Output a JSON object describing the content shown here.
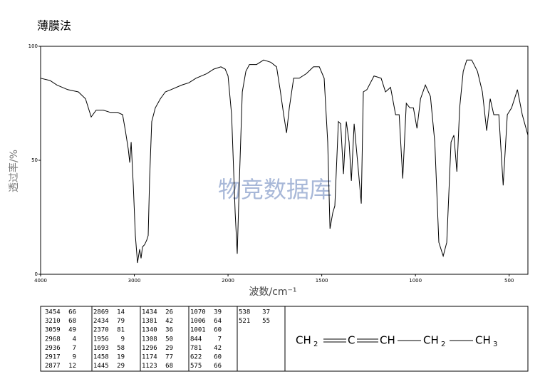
{
  "chart_data": {
    "type": "ir-spectrum",
    "title": "薄膜法",
    "xlabel": "波数/cm⁻¹",
    "ylabel": "透过率/%",
    "watermark": "物竞数据库",
    "xlim": [
      4000,
      400
    ],
    "x_break": 2000,
    "x_break_factor": 2,
    "xticks": [
      4000,
      3000,
      2000,
      1500,
      1000,
      500
    ],
    "ylim": [
      0,
      100
    ],
    "yticks": [
      0,
      50,
      100
    ],
    "color": "#000000",
    "x": [
      4000,
      3900,
      3825,
      3711,
      3597,
      3521,
      3460,
      3407,
      3331,
      3255,
      3179,
      3125,
      3095,
      3065,
      3049,
      3034,
      3011,
      2989,
      2966,
      2943,
      2928,
      2913,
      2890,
      2867,
      2852,
      2837,
      2814,
      2776,
      2722,
      2669,
      2608,
      2494,
      2418,
      2342,
      2228,
      2152,
      2076,
      2030,
      2000,
      1981,
      1962,
      1951,
      1939,
      1924,
      1905,
      1886,
      1848,
      1810,
      1772,
      1741,
      1722,
      1703,
      1688,
      1673,
      1650,
      1620,
      1582,
      1544,
      1513,
      1487,
      1468,
      1456,
      1441,
      1430,
      1411,
      1399,
      1384,
      1369,
      1354,
      1342,
      1327,
      1304,
      1289,
      1278,
      1259,
      1221,
      1183,
      1160,
      1133,
      1106,
      1087,
      1068,
      1049,
      1030,
      1011,
      992,
      973,
      947,
      920,
      897,
      875,
      852,
      833,
      810,
      795,
      779,
      764,
      745,
      726,
      700,
      669,
      643,
      620,
      601,
      582,
      555,
      532,
      510,
      487,
      456,
      430,
      400
    ],
    "values": [
      86,
      85,
      83,
      81,
      80,
      77,
      69,
      72,
      72,
      71,
      71,
      70,
      63,
      55,
      49,
      58,
      39,
      17,
      5,
      11,
      7,
      12,
      13,
      15,
      17,
      42,
      67,
      73,
      77,
      80,
      81,
      83,
      84,
      86,
      88,
      90,
      91,
      90,
      87,
      70,
      27,
      9,
      42,
      80,
      89,
      92,
      92,
      94,
      93,
      91,
      81,
      70,
      62,
      73,
      86,
      86,
      88,
      91,
      91,
      86,
      58,
      20,
      27,
      30,
      67,
      66,
      44,
      67,
      58,
      41,
      66,
      45,
      31,
      80,
      81,
      87,
      86,
      80,
      82,
      70,
      70,
      42,
      75,
      73,
      73,
      64,
      77,
      83,
      78,
      58,
      14,
      8,
      14,
      58,
      61,
      45,
      73,
      89,
      94,
      94,
      89,
      80,
      63,
      77,
      70,
      70,
      39,
      70,
      73,
      81,
      70,
      61
    ],
    "peaks": [
      [
        3454,
        66
      ],
      [
        3210,
        68
      ],
      [
        3059,
        49
      ],
      [
        2968,
        4
      ],
      [
        2936,
        7
      ],
      [
        2917,
        9
      ],
      [
        2877,
        12
      ],
      [
        2869,
        14
      ],
      [
        2434,
        79
      ],
      [
        2370,
        81
      ],
      [
        1956,
        9
      ],
      [
        1693,
        58
      ],
      [
        1458,
        19
      ],
      [
        1445,
        29
      ],
      [
        1434,
        26
      ],
      [
        1381,
        42
      ],
      [
        1340,
        36
      ],
      [
        1308,
        50
      ],
      [
        1296,
        29
      ],
      [
        1174,
        77
      ],
      [
        1123,
        68
      ],
      [
        1070,
        39
      ],
      [
        1006,
        64
      ],
      [
        1001,
        60
      ],
      [
        844,
        7
      ],
      [
        781,
        42
      ],
      [
        622,
        60
      ],
      [
        575,
        66
      ],
      [
        538,
        37
      ],
      [
        521,
        55
      ]
    ],
    "formula": {
      "groups": [
        {
          "text": "CH",
          "sub": "2"
        },
        {
          "text": "C"
        },
        {
          "text": "CH"
        },
        {
          "text": "CH",
          "sub": "2"
        },
        {
          "text": "CH",
          "sub": "3"
        }
      ],
      "bonds": [
        "double",
        "double",
        "single",
        "single"
      ]
    }
  }
}
